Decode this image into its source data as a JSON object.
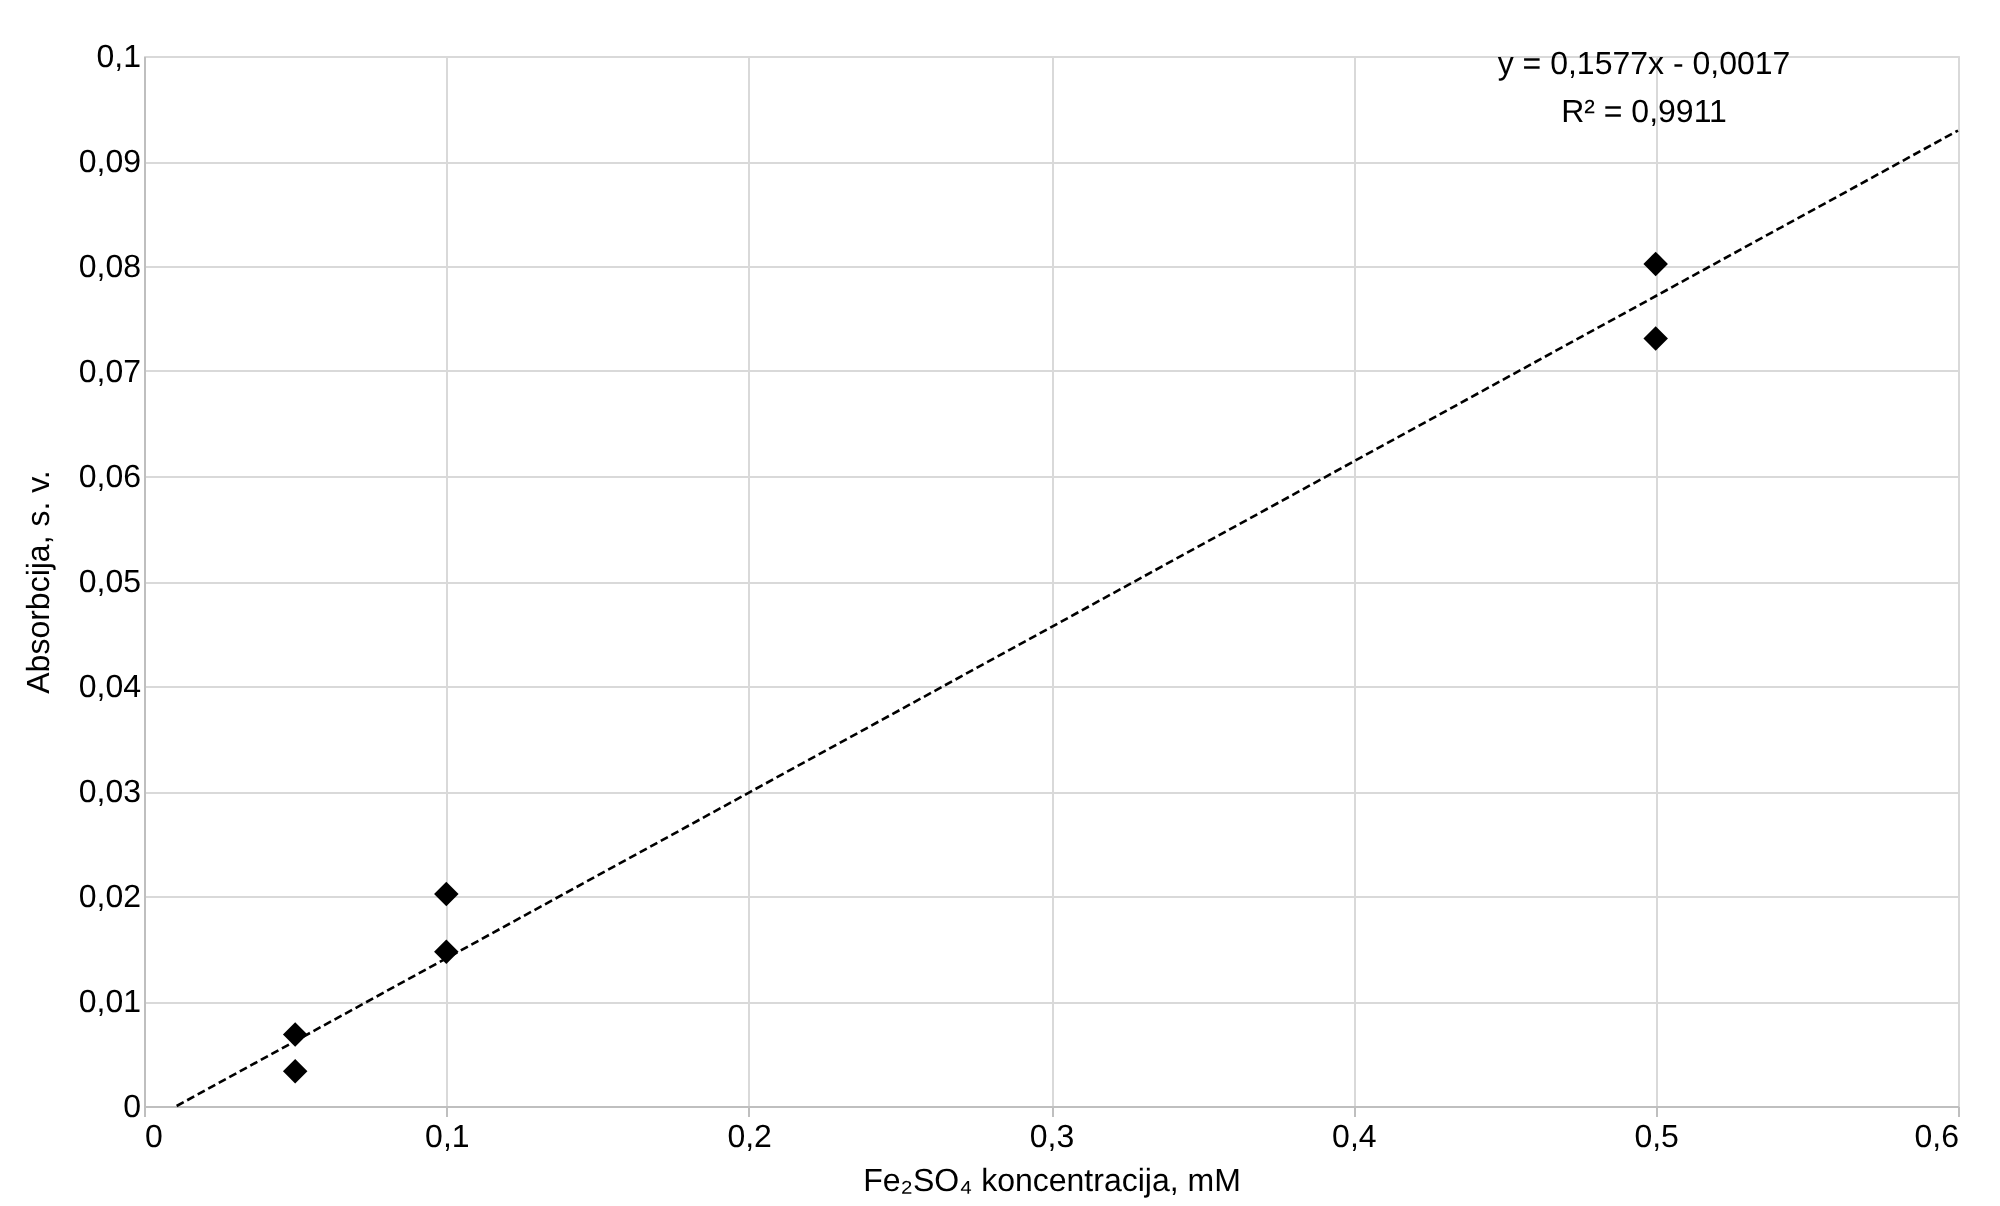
{
  "chart_data": {
    "type": "scatter",
    "xlabel": "Fe₂SO₄ koncentracija, mM",
    "ylabel": "Absorbcija, s. v.",
    "xlim": [
      0,
      0.6
    ],
    "ylim": [
      0,
      0.1
    ],
    "xticks": [
      {
        "value": 0,
        "label": "0"
      },
      {
        "value": 0.1,
        "label": "0,1"
      },
      {
        "value": 0.2,
        "label": "0,2"
      },
      {
        "value": 0.3,
        "label": "0,3"
      },
      {
        "value": 0.4,
        "label": "0,4"
      },
      {
        "value": 0.5,
        "label": "0,5"
      },
      {
        "value": 0.6,
        "label": "0,6"
      }
    ],
    "yticks": [
      {
        "value": 0,
        "label": "0"
      },
      {
        "value": 0.01,
        "label": "0,01"
      },
      {
        "value": 0.02,
        "label": "0,02"
      },
      {
        "value": 0.03,
        "label": "0,03"
      },
      {
        "value": 0.04,
        "label": "0,04"
      },
      {
        "value": 0.05,
        "label": "0,05"
      },
      {
        "value": 0.06,
        "label": "0,06"
      },
      {
        "value": 0.07,
        "label": "0,07"
      },
      {
        "value": 0.08,
        "label": "0,08"
      },
      {
        "value": 0.09,
        "label": "0,09"
      },
      {
        "value": 0.1,
        "label": "0,1"
      }
    ],
    "grid": true,
    "series": [
      {
        "color": "#000000",
        "marker": "diamond",
        "x": [
          0.05,
          0.05,
          0.1,
          0.1,
          0.5,
          0.5
        ],
        "values": [
          0.0068,
          0.0033,
          0.0202,
          0.0147,
          0.0802,
          0.0731
        ]
      },
      {
        "type": "line",
        "color": "#000000",
        "line_style": "dashed",
        "x": [
          0.0108,
          0.6
        ],
        "values": [
          0,
          0.0929
        ]
      }
    ],
    "annotations": [
      "y = 0,1577x - 0,0017",
      "R² = 0,9911"
    ]
  }
}
